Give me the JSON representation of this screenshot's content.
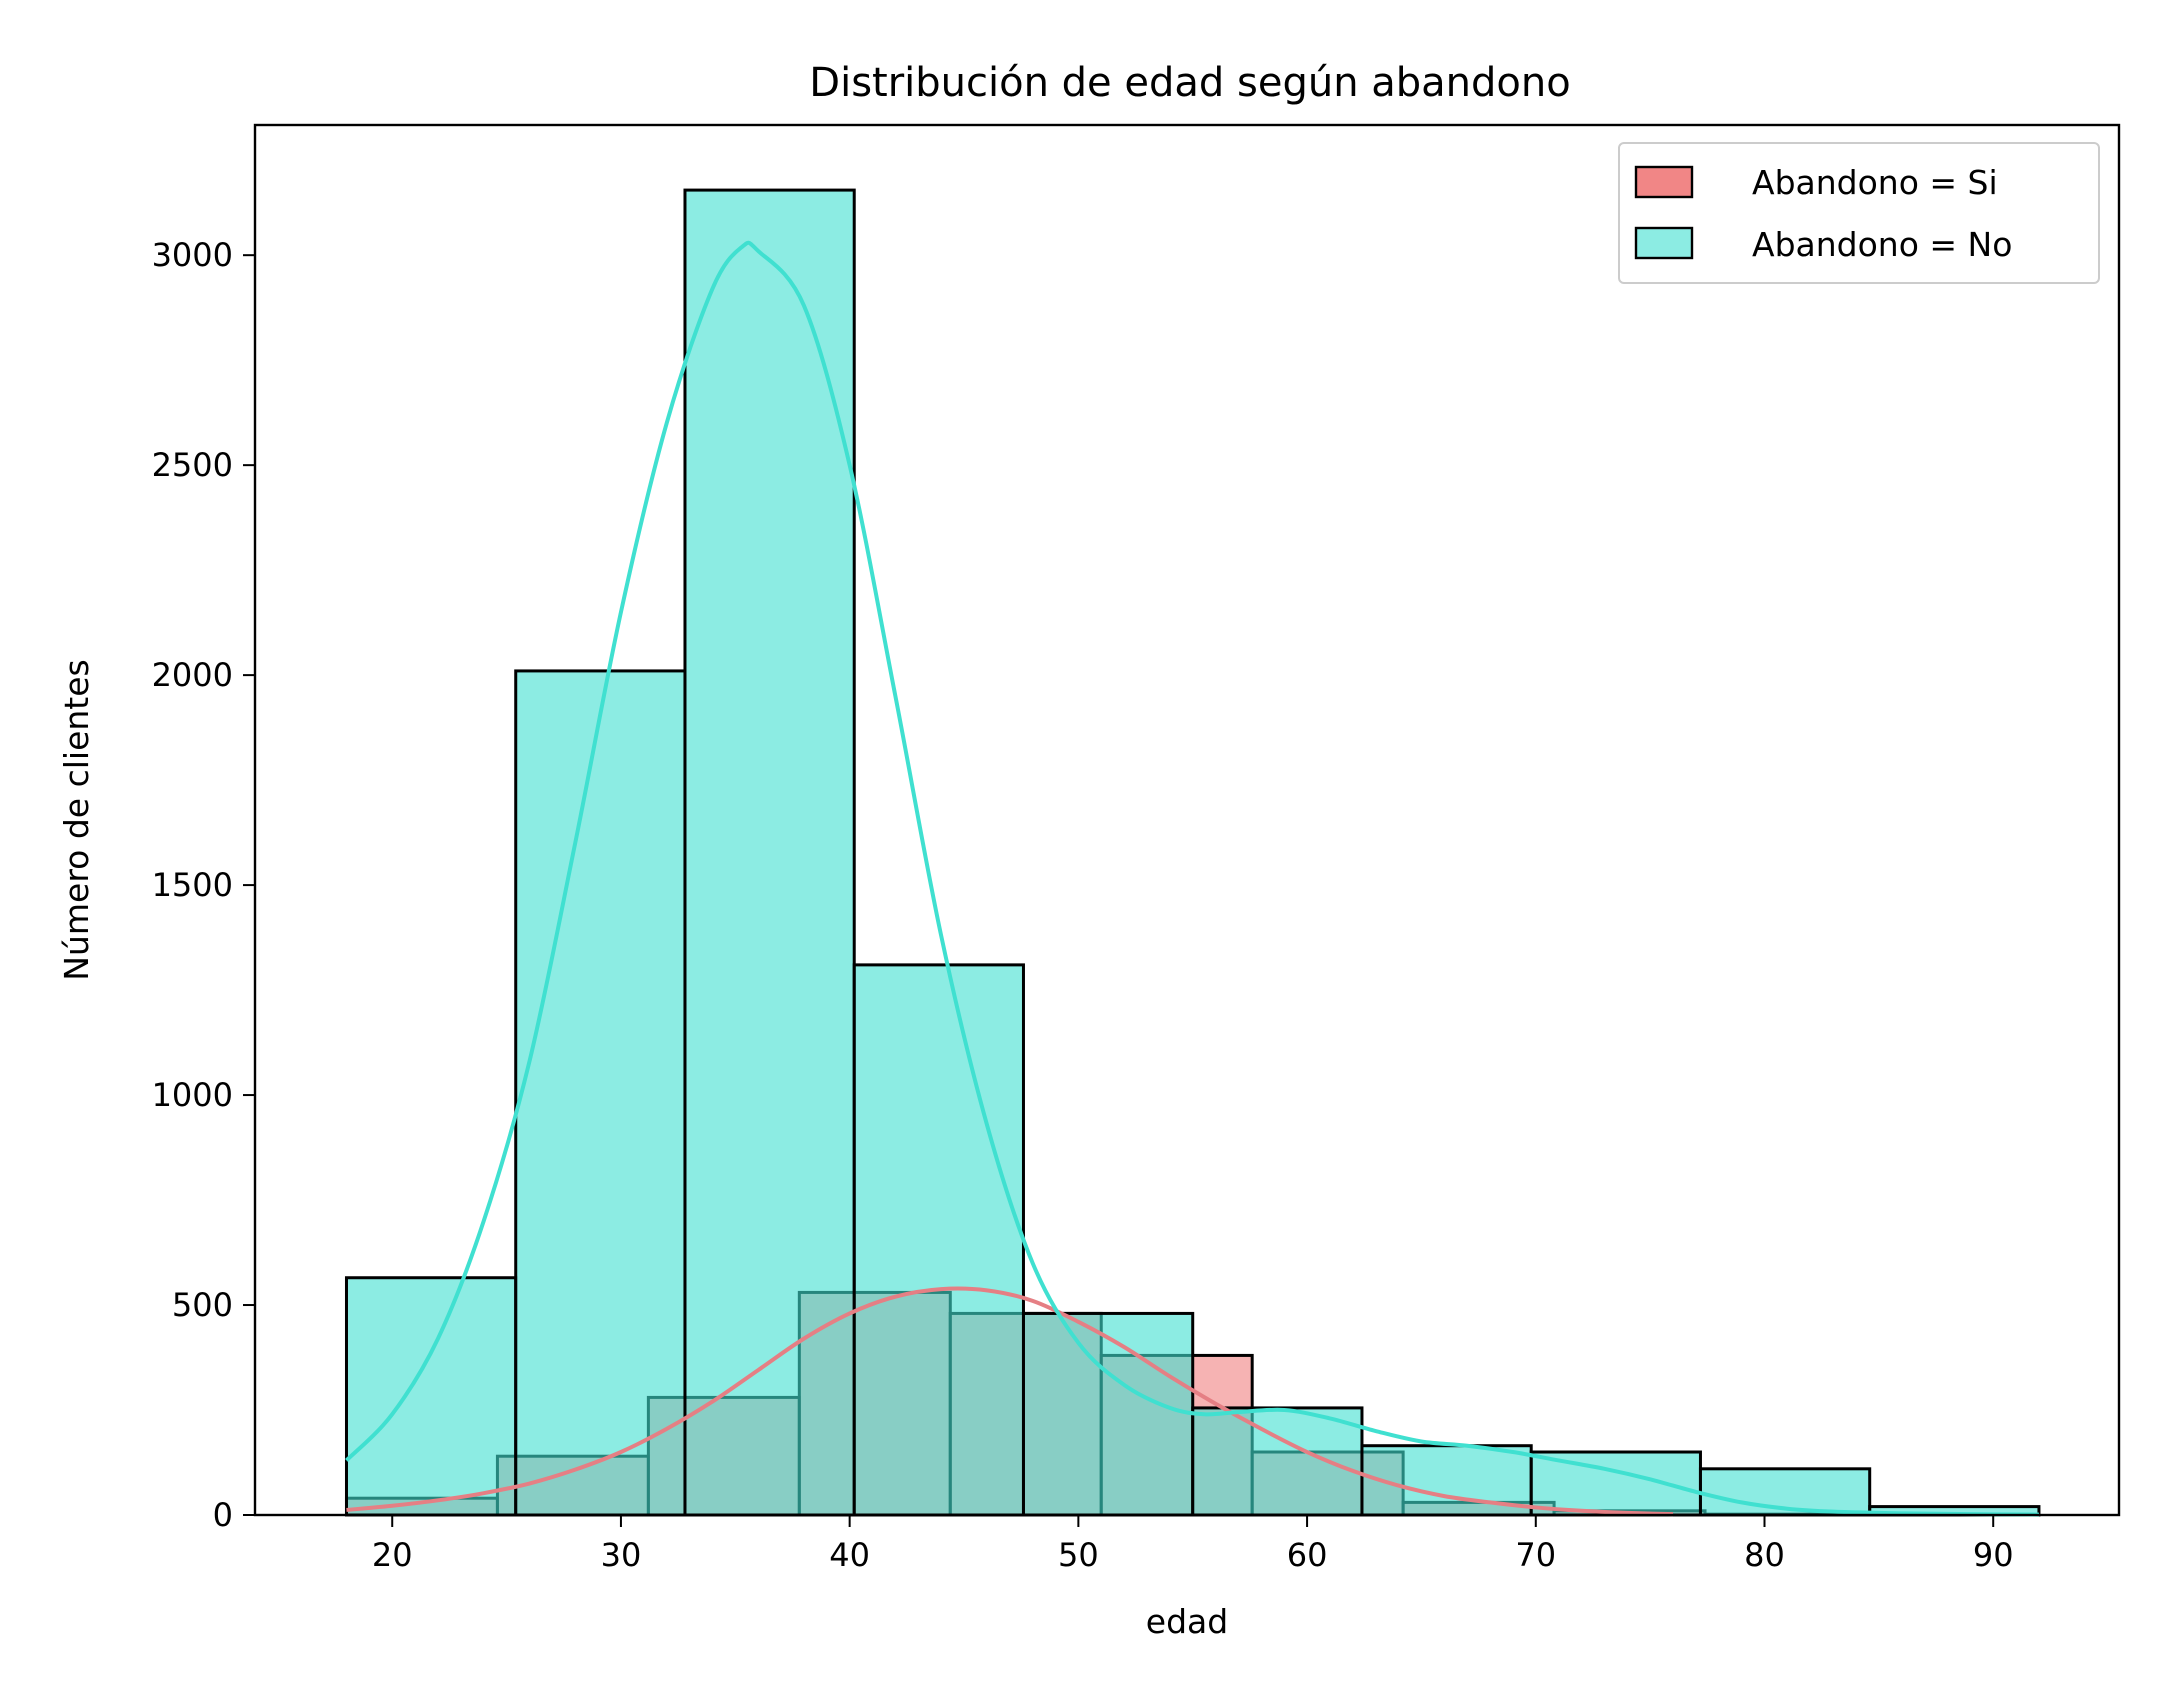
{
  "chart_data": {
    "type": "histogram",
    "title": "Distribución de edad según abandono",
    "xlabel": "edad",
    "ylabel": "Número de clientes",
    "xlim": [
      14,
      95.5
    ],
    "ylim": [
      0,
      3310
    ],
    "xticks": [
      20,
      30,
      40,
      50,
      60,
      70,
      80,
      90
    ],
    "yticks": [
      0,
      500,
      1000,
      1500,
      2000,
      2500,
      3000
    ],
    "grid": false,
    "legend_position": "top-right",
    "series": [
      {
        "name": "Abandono = Si",
        "color": "#f08080",
        "line_color": "#e57f84",
        "bin_edges": [
          18,
          24.6,
          31.2,
          37.8,
          44.4,
          51.0,
          57.6,
          64.2,
          70.8,
          77.4,
          84.0
        ],
        "counts": [
          40,
          140,
          280,
          530,
          480,
          380,
          150,
          30,
          10,
          2
        ],
        "kde": [
          [
            18,
            12
          ],
          [
            20,
            22
          ],
          [
            22,
            35
          ],
          [
            24,
            52
          ],
          [
            26,
            75
          ],
          [
            28,
            108
          ],
          [
            30,
            150
          ],
          [
            32,
            205
          ],
          [
            34,
            270
          ],
          [
            36,
            345
          ],
          [
            38,
            420
          ],
          [
            40,
            480
          ],
          [
            42,
            520
          ],
          [
            44,
            538
          ],
          [
            46,
            535
          ],
          [
            48,
            510
          ],
          [
            50,
            460
          ],
          [
            52,
            400
          ],
          [
            54,
            330
          ],
          [
            56,
            265
          ],
          [
            58,
            205
          ],
          [
            60,
            150
          ],
          [
            62,
            105
          ],
          [
            64,
            70
          ],
          [
            66,
            45
          ],
          [
            68,
            30
          ],
          [
            70,
            18
          ],
          [
            72,
            10
          ],
          [
            74,
            5
          ],
          [
            76,
            2
          ]
        ]
      },
      {
        "name": "Abandono = No",
        "color": "#40e0d0",
        "line_color": "#40e0d0",
        "bin_edges": [
          18,
          25.4,
          32.8,
          40.2,
          47.6,
          55.0,
          62.4,
          69.8,
          77.2,
          84.6,
          92.0
        ],
        "counts": [
          565,
          2010,
          3155,
          1310,
          480,
          255,
          165,
          150,
          110,
          20
        ],
        "kde": [
          [
            18,
            130
          ],
          [
            20,
            240
          ],
          [
            22,
            420
          ],
          [
            24,
            700
          ],
          [
            26,
            1080
          ],
          [
            28,
            1600
          ],
          [
            30,
            2150
          ],
          [
            32,
            2600
          ],
          [
            34,
            2920
          ],
          [
            35.3,
            3020
          ],
          [
            36,
            3010
          ],
          [
            38,
            2880
          ],
          [
            40,
            2500
          ],
          [
            42,
            1950
          ],
          [
            44,
            1380
          ],
          [
            46,
            930
          ],
          [
            48,
            600
          ],
          [
            50,
            410
          ],
          [
            52,
            310
          ],
          [
            54,
            255
          ],
          [
            55.5,
            240
          ],
          [
            57,
            245
          ],
          [
            59,
            250
          ],
          [
            61,
            230
          ],
          [
            63,
            200
          ],
          [
            65,
            175
          ],
          [
            67,
            165
          ],
          [
            69,
            150
          ],
          [
            71,
            130
          ],
          [
            73,
            110
          ],
          [
            75,
            85
          ],
          [
            77,
            55
          ],
          [
            79,
            30
          ],
          [
            81,
            15
          ],
          [
            83,
            8
          ],
          [
            86,
            4
          ],
          [
            89,
            2
          ],
          [
            92,
            1
          ]
        ]
      }
    ]
  }
}
